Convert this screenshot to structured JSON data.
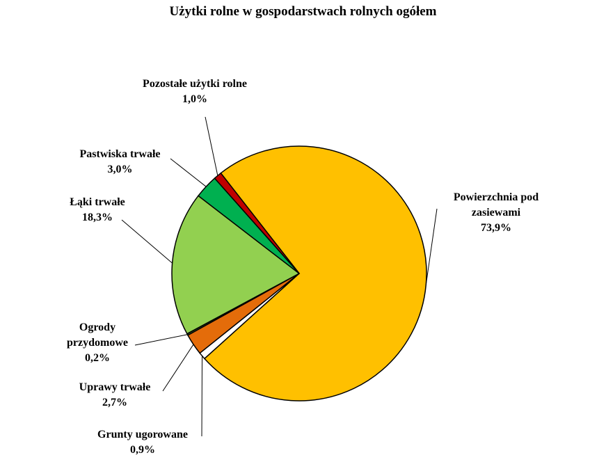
{
  "chart_data": {
    "type": "pie",
    "title": "Użytki rolne w gospodarstwach rolnych ogółem",
    "categories": [
      "Powierzchnia pod zasiewami",
      "Grunty ugorowane",
      "Uprawy trwałe",
      "Ogrody przydomowe",
      "Łąki trwałe",
      "Pastwiska trwałe",
      "Pozostałe użytki rolne"
    ],
    "values": [
      73.9,
      0.9,
      2.7,
      0.2,
      18.3,
      3.0,
      1.0
    ],
    "value_labels": [
      "73,9%",
      "0,9%",
      "2,7%",
      "0,2%",
      "18,3%",
      "3,0%",
      "1,0%"
    ],
    "colors": [
      "#FFC000",
      "#FFFFFF",
      "#E46C0A",
      "#375623",
      "#92D050",
      "#00B050",
      "#C00000"
    ]
  }
}
